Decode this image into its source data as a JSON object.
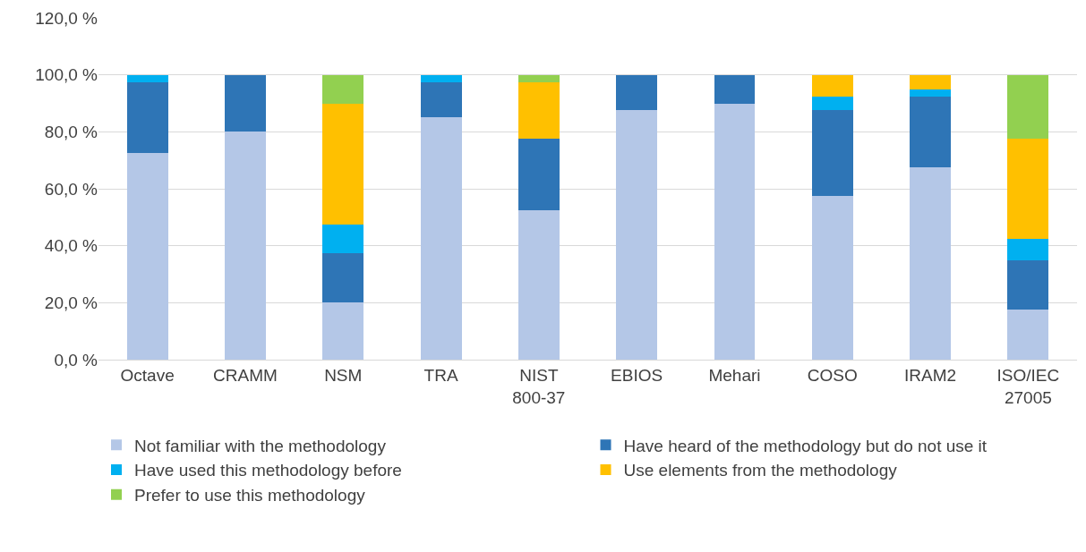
{
  "chart_data": {
    "type": "bar",
    "stacked": true,
    "categories": [
      "Octave",
      "CRAMM",
      "NSM",
      "TRA",
      "NIST 800-37",
      "EBIOS",
      "Mehari",
      "COSO",
      "IRAM2",
      "ISO/IEC 27005"
    ],
    "series": [
      {
        "name": "Not familiar with the methodology",
        "color": "#b4c7e7",
        "values": [
          72.5,
          80,
          20,
          85,
          52.5,
          87.5,
          90,
          57.5,
          67.5,
          17.5
        ]
      },
      {
        "name": "Have heard of the methodology but do not use it",
        "color": "#2e75b6",
        "values": [
          25,
          20,
          17.5,
          12.5,
          25,
          12.5,
          10,
          30,
          25,
          17.5
        ]
      },
      {
        "name": "Have used this methodology before",
        "color": "#00b0f0",
        "values": [
          2.5,
          null,
          10,
          2.5,
          null,
          null,
          null,
          5,
          2.5,
          7.5
        ]
      },
      {
        "name": "Use elements from the methodology",
        "color": "#ffc000",
        "values": [
          null,
          null,
          42.5,
          null,
          20,
          null,
          null,
          7.5,
          5,
          35
        ]
      },
      {
        "name": "Prefer to use this methodology",
        "color": "#92d050",
        "values": [
          null,
          null,
          10,
          null,
          2.5,
          null,
          null,
          null,
          null,
          22.5
        ]
      }
    ],
    "ylim": [
      0,
      120
    ],
    "yticks": [
      {
        "value": 0,
        "label": "0,0 %"
      },
      {
        "value": 20,
        "label": "20,0 %"
      },
      {
        "value": 40,
        "label": "40,0 %"
      },
      {
        "value": 60,
        "label": "60,0 %"
      },
      {
        "value": 80,
        "label": "80,0 %"
      },
      {
        "value": 100,
        "label": "100,0 %"
      },
      {
        "value": 120,
        "label": "120,0 %"
      }
    ],
    "grid": "y",
    "legend": "bottom"
  }
}
